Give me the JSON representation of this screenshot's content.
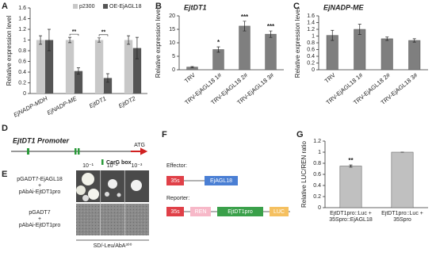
{
  "chart_data": [
    {
      "type": "bar",
      "y_label": "Relative expression level",
      "categories": [
        "EjNADP-MDH",
        "EjNADP-ME",
        "EjtDT1",
        "EjtDT2"
      ],
      "series": [
        {
          "name": "p2300",
          "color": "#c8c8c8",
          "values": [
            1.0,
            1.0,
            1.0,
            1.0
          ],
          "errors": [
            0.08,
            0.05,
            0.04,
            0.08
          ]
        },
        {
          "name": "OE-EjAGL18",
          "color": "#555555",
          "values": [
            1.0,
            0.42,
            0.29,
            0.85
          ],
          "errors": [
            0.2,
            0.06,
            0.08,
            0.2
          ]
        }
      ],
      "significance": [
        null,
        "**",
        "**",
        null
      ],
      "ylim": [
        0,
        1.6
      ],
      "yticks": [
        0,
        0.2,
        0.4,
        0.6,
        0.8,
        1,
        1.2,
        1.4,
        1.6
      ],
      "legend": "upper right"
    },
    {
      "type": "bar",
      "title": "EjtDT1",
      "y_label": "Relative expression level",
      "categories": [
        "TRV",
        "TRV-EjAGL18 1#",
        "TRV-EjAGL18 2#",
        "TRV-EjAGL18 3#"
      ],
      "values": [
        1,
        7.5,
        16.2,
        13.2
      ],
      "errors": [
        0.2,
        1.0,
        1.8,
        1.2
      ],
      "color": "#7f7f7f",
      "significance": [
        null,
        "*",
        "***",
        "***"
      ],
      "ylim": [
        0,
        20
      ],
      "yticks": [
        0,
        5,
        10,
        15,
        20
      ]
    },
    {
      "type": "bar",
      "title": "EjNADP-ME",
      "y_label": "Relative expression level",
      "categories": [
        "TRV",
        "TRV-EjAGL18 1#",
        "TRV-EjAGL18 2#",
        "TRV-EjAGL18 3#"
      ],
      "values": [
        1.02,
        1.2,
        0.92,
        0.87
      ],
      "errors": [
        0.15,
        0.15,
        0.05,
        0.05
      ],
      "color": "#7f7f7f",
      "ylim": [
        0,
        1.6
      ],
      "yticks": [
        0,
        0.2,
        0.4,
        0.6,
        0.8,
        1,
        1.2,
        1.4,
        1.6
      ]
    },
    {
      "type": "bar",
      "y_label": "Relative LUC/REN ratio",
      "categories": [
        "EjtDT1pro::Luc + 35Spro::EjAGL18",
        "EjtDT1pro::Luc + 35Spro"
      ],
      "values": [
        0.75,
        1.0
      ],
      "errors": [
        0.02,
        0
      ],
      "color": "#c0c0c0",
      "significance": [
        "**",
        null
      ],
      "ylim": [
        0,
        1.2
      ],
      "yticks": [
        0,
        0.2,
        0.4,
        0.6,
        0.8,
        1,
        1.2
      ]
    }
  ],
  "panels": {
    "letters": [
      "A",
      "B",
      "C",
      "D",
      "E",
      "F",
      "G"
    ],
    "d": {
      "title": "EjtDT1 Promoter",
      "atg": "ATG",
      "legend": "CarG box"
    },
    "e": {
      "dilutions": [
        "10⁻¹",
        "10⁻²",
        "10⁻³"
      ],
      "rows": [
        [
          "pGADT7-EjAGL18",
          "+",
          "pAbAi-EjtDT1pro"
        ],
        [
          "pGADT7",
          "+",
          "pAbAi-EjtDT1pro"
        ]
      ],
      "medium": "SD/-Leu/AbA³⁰⁰"
    },
    "f": {
      "effector": "Effector:",
      "reporter": "Reporter:",
      "promoter": "35s",
      "effector_gene": "EjAGL18",
      "ren": "REN",
      "reporter_promoter": "EjtDT1pro",
      "luc": "LUC"
    }
  }
}
